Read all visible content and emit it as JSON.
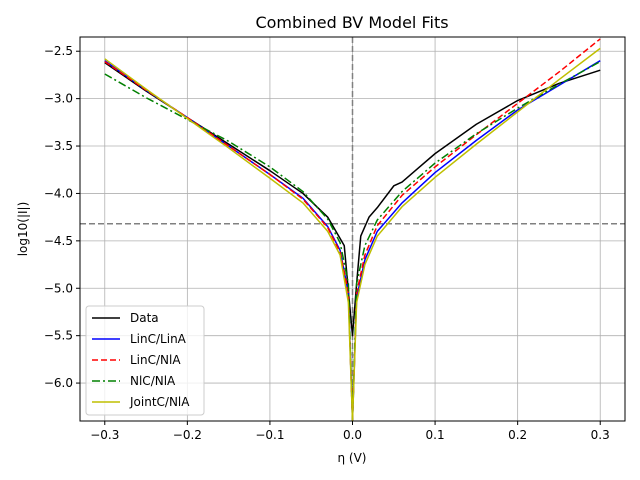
{
  "chart_data": {
    "type": "line",
    "title": "Combined BV Model Fits",
    "xlabel": "η (V)",
    "ylabel": "log10(|I|)",
    "xlim": [
      -0.33,
      0.33
    ],
    "ylim": [
      -6.4,
      -2.35
    ],
    "grid": true,
    "legend_position": "lower-left",
    "x_ticks": [
      -0.3,
      -0.2,
      -0.1,
      0.0,
      0.1,
      0.2,
      0.3
    ],
    "x_tick_labels": [
      "−0.3",
      "−0.2",
      "−0.1",
      "0.0",
      "0.1",
      "0.2",
      "0.3"
    ],
    "y_ticks": [
      -6.0,
      -5.5,
      -5.0,
      -4.5,
      -4.0,
      -3.5,
      -3.0,
      -2.5
    ],
    "y_tick_labels": [
      "−6.0",
      "−5.5",
      "−5.0",
      "−4.5",
      "−4.0",
      "−3.5",
      "−3.0",
      "−2.5"
    ],
    "reference_lines": {
      "vertical_x": 0.0,
      "horizontal_y": -4.32
    },
    "series": [
      {
        "name": "Data",
        "color": "#000000",
        "dash": "solid",
        "x": [
          -0.3,
          -0.25,
          -0.2,
          -0.15,
          -0.1,
          -0.06,
          -0.03,
          -0.01,
          0.0,
          0.005,
          0.01,
          0.02,
          0.03,
          0.05,
          0.06,
          0.08,
          0.1,
          0.15,
          0.2,
          0.25,
          0.3
        ],
        "y": [
          -2.62,
          -2.92,
          -3.2,
          -3.48,
          -3.76,
          -4.0,
          -4.25,
          -4.55,
          -5.5,
          -4.95,
          -4.45,
          -4.25,
          -4.15,
          -3.92,
          -3.88,
          -3.73,
          -3.58,
          -3.27,
          -3.02,
          -2.84,
          -2.7
        ]
      },
      {
        "name": "LinC/LinA",
        "color": "#0000ff",
        "dash": "solid",
        "x": [
          -0.3,
          -0.25,
          -0.2,
          -0.15,
          -0.1,
          -0.06,
          -0.03,
          -0.015,
          -0.005,
          0.0,
          0.005,
          0.015,
          0.03,
          0.06,
          0.1,
          0.15,
          0.2,
          0.25,
          0.3
        ],
        "y": [
          -2.6,
          -2.91,
          -3.2,
          -3.5,
          -3.8,
          -4.05,
          -4.35,
          -4.6,
          -5.05,
          -6.4,
          -5.1,
          -4.7,
          -4.4,
          -4.1,
          -3.78,
          -3.44,
          -3.12,
          -2.86,
          -2.6
        ]
      },
      {
        "name": "LinC/NlA",
        "color": "#ff0000",
        "dash": "dashed",
        "x": [
          -0.3,
          -0.25,
          -0.2,
          -0.15,
          -0.1,
          -0.06,
          -0.03,
          -0.015,
          -0.005,
          0.0,
          0.005,
          0.015,
          0.03,
          0.06,
          0.1,
          0.15,
          0.2,
          0.25,
          0.3
        ],
        "y": [
          -2.61,
          -2.91,
          -3.2,
          -3.5,
          -3.8,
          -4.06,
          -4.36,
          -4.62,
          -5.05,
          -6.4,
          -5.05,
          -4.65,
          -4.34,
          -4.02,
          -3.72,
          -3.38,
          -3.05,
          -2.72,
          -2.37
        ]
      },
      {
        "name": "NlC/NlA",
        "color": "#008000",
        "dash": "dashdot",
        "x": [
          -0.3,
          -0.25,
          -0.2,
          -0.15,
          -0.1,
          -0.06,
          -0.03,
          -0.015,
          -0.005,
          0.0,
          0.005,
          0.015,
          0.03,
          0.06,
          0.1,
          0.15,
          0.2,
          0.25,
          0.3
        ],
        "y": [
          -2.74,
          -2.99,
          -3.22,
          -3.45,
          -3.72,
          -3.98,
          -4.27,
          -4.52,
          -4.95,
          -6.4,
          -4.95,
          -4.55,
          -4.28,
          -3.98,
          -3.68,
          -3.37,
          -3.1,
          -2.85,
          -2.61
        ]
      },
      {
        "name": "JointC/NlA",
        "color": "#bfbf00",
        "dash": "solid",
        "x": [
          -0.3,
          -0.25,
          -0.2,
          -0.15,
          -0.1,
          -0.06,
          -0.03,
          -0.015,
          -0.005,
          0.0,
          0.005,
          0.015,
          0.03,
          0.06,
          0.1,
          0.15,
          0.2,
          0.25,
          0.3
        ],
        "y": [
          -2.58,
          -2.9,
          -3.21,
          -3.52,
          -3.84,
          -4.1,
          -4.4,
          -4.65,
          -5.15,
          -6.4,
          -5.15,
          -4.75,
          -4.45,
          -4.14,
          -3.83,
          -3.48,
          -3.14,
          -2.8,
          -2.47
        ]
      }
    ]
  }
}
